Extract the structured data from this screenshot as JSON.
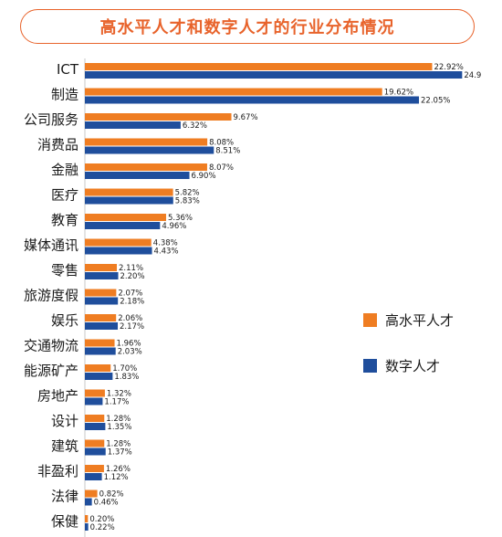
{
  "chart_data": {
    "type": "bar",
    "orientation": "horizontal",
    "title": "高水平人才和数字人才的行业分布情况",
    "categories": [
      "ICT",
      "制造",
      "公司服务",
      "消费品",
      "金融",
      "医疗",
      "教育",
      "媒体通讯",
      "零售",
      "旅游度假",
      "娱乐",
      "交通物流",
      "能源矿产",
      "房地产",
      "设计",
      "建筑",
      "非盈利",
      "法律",
      "保健"
    ],
    "series": [
      {
        "name": "高水平人才",
        "color": "#ef7d22",
        "values": [
          22.92,
          19.62,
          9.67,
          8.08,
          8.07,
          5.82,
          5.36,
          4.38,
          2.11,
          2.07,
          2.06,
          1.96,
          1.7,
          1.32,
          1.28,
          1.28,
          1.26,
          0.82,
          0.2
        ],
        "labels": [
          "22.92%",
          "19.62%",
          "9.67%",
          "8.08%",
          "8.07%",
          "5.82%",
          "5.36%",
          "4.38%",
          "2.11%",
          "2.07%",
          "2.06%",
          "1.96%",
          "1.70%",
          "1.32%",
          "1.28%",
          "1.28%",
          "1.26%",
          "0.82%",
          "0.20%"
        ]
      },
      {
        "name": "数字人才",
        "color": "#1f4e9c",
        "values": [
          24.9,
          22.05,
          6.32,
          8.51,
          6.9,
          5.83,
          4.96,
          4.43,
          2.2,
          2.18,
          2.17,
          2.03,
          1.83,
          1.17,
          1.35,
          1.37,
          1.12,
          0.46,
          0.22
        ],
        "labels": [
          "24.9",
          "22.05%",
          "6.32%",
          "8.51%",
          "6.90%",
          "5.83%",
          "4.96%",
          "4.43%",
          "2.20%",
          "2.18%",
          "2.17%",
          "2.03%",
          "1.83%",
          "1.17%",
          "1.35%",
          "1.37%",
          "1.12%",
          "0.46%",
          "0.22%"
        ]
      }
    ],
    "legend_position": "right",
    "grid": false
  }
}
